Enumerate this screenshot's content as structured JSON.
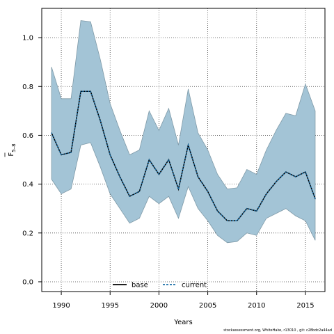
{
  "chart_data": {
    "type": "area",
    "xlabel": "Years",
    "ylabel_main": "F",
    "ylabel_sub": "5–8",
    "xlim": [
      1988,
      2017
    ],
    "ylim": [
      -0.04,
      1.12
    ],
    "xticks": [
      1990,
      1995,
      2000,
      2005,
      2010,
      2015
    ],
    "yticks": [
      0.0,
      0.2,
      0.4,
      0.6,
      0.8,
      1.0
    ],
    "ytick_labels": [
      "0.0",
      "0.2",
      "0.4",
      "0.6",
      "0.8",
      "1.0"
    ],
    "grid": true,
    "legend_placement": "bottom-center",
    "band_color": "#a3c4d6",
    "band_stroke": "#7f9aa8",
    "x": [
      1989,
      1990,
      1991,
      1992,
      1993,
      1994,
      1995,
      1996,
      1997,
      1998,
      1999,
      2000,
      2001,
      2002,
      2003,
      2004,
      2005,
      2006,
      2007,
      2008,
      2009,
      2010,
      2011,
      2012,
      2013,
      2014,
      2015,
      2016
    ],
    "series": [
      {
        "name": "base",
        "style": "solid",
        "color": "#000000",
        "values": [
          0.61,
          0.52,
          0.53,
          0.78,
          0.78,
          0.66,
          0.52,
          0.43,
          0.35,
          0.37,
          0.5,
          0.44,
          0.5,
          0.38,
          0.56,
          0.43,
          0.37,
          0.29,
          0.25,
          0.25,
          0.3,
          0.29,
          0.36,
          0.41,
          0.45,
          0.43,
          0.45,
          0.34
        ]
      },
      {
        "name": "current",
        "style": "dashed",
        "color": "#1a6fa8",
        "values": [
          0.61,
          0.52,
          0.53,
          0.78,
          0.78,
          0.66,
          0.52,
          0.43,
          0.35,
          0.37,
          0.5,
          0.44,
          0.5,
          0.38,
          0.56,
          0.43,
          0.37,
          0.29,
          0.25,
          0.25,
          0.3,
          0.29,
          0.36,
          0.41,
          0.45,
          0.43,
          0.45,
          0.34
        ]
      }
    ],
    "band_upper": [
      0.88,
      0.75,
      0.75,
      1.07,
      1.065,
      0.91,
      0.73,
      0.62,
      0.52,
      0.54,
      0.7,
      0.62,
      0.71,
      0.56,
      0.79,
      0.61,
      0.54,
      0.44,
      0.38,
      0.385,
      0.46,
      0.44,
      0.54,
      0.62,
      0.69,
      0.68,
      0.81,
      0.7
    ],
    "band_lower": [
      0.42,
      0.36,
      0.38,
      0.56,
      0.57,
      0.47,
      0.36,
      0.3,
      0.24,
      0.26,
      0.35,
      0.32,
      0.35,
      0.26,
      0.39,
      0.3,
      0.25,
      0.19,
      0.16,
      0.165,
      0.2,
      0.19,
      0.26,
      0.28,
      0.3,
      0.27,
      0.25,
      0.17
    ]
  },
  "footer_text": "stockassessment.org, WhiteHake, r13010 ,  git:  c28bdc2a44ad"
}
